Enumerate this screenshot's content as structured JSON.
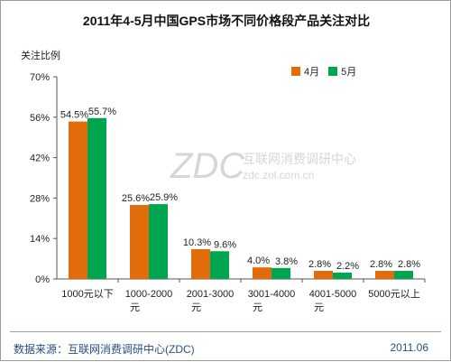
{
  "title": "2011年4-5月中国GPS市场不同价格段产品关注对比",
  "legend": {
    "april": "4月",
    "may": "5月"
  },
  "colors": {
    "april": "#e36c0a",
    "may": "#00a550",
    "footer_text": "#2a4f7f"
  },
  "watermark": {
    "logo": "ZDC",
    "line1": "互联网消费调研中心",
    "line2": "zdc.zol.com.cn"
  },
  "footer": {
    "source": "数据来源：互联网消费调研中心(ZDC)",
    "date": "2011.06"
  },
  "chart_data": {
    "type": "bar",
    "title": "2011年4-5月中国GPS市场不同价格段产品关注对比",
    "ylabel": "关注比例",
    "xlabel": "",
    "ylim": [
      0,
      70
    ],
    "yticks": [
      "0%",
      "14%",
      "28%",
      "42%",
      "56%",
      "70%"
    ],
    "grid": false,
    "legend_position": "top-right",
    "categories": [
      [
        "1000元以下"
      ],
      [
        "1000-2000",
        "元"
      ],
      [
        "2001-3000",
        "元"
      ],
      [
        "3001-4000",
        "元"
      ],
      [
        "4001-5000",
        "元"
      ],
      [
        "5000元以上"
      ]
    ],
    "series": [
      {
        "name": "4月",
        "values": [
          54.5,
          25.6,
          10.3,
          4.0,
          2.8,
          2.8
        ],
        "labels": [
          "54.5%",
          "25.6%",
          "10.3%",
          "4.0%",
          "2.8%",
          "2.8%"
        ]
      },
      {
        "name": "5月",
        "values": [
          55.7,
          25.9,
          9.6,
          3.8,
          2.2,
          2.8
        ],
        "labels": [
          "55.7%",
          "25.9%",
          "9.6%",
          "3.8%",
          "2.2%",
          "2.8%"
        ]
      }
    ]
  }
}
